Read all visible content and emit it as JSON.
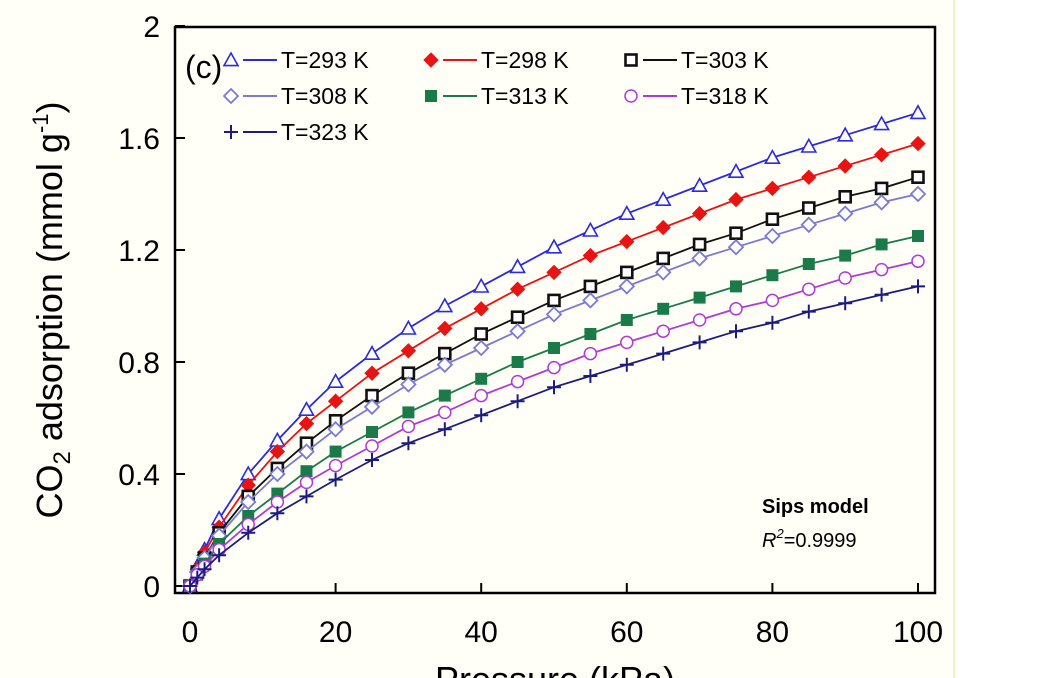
{
  "chart_data": {
    "type": "line",
    "panel_label": "(c)",
    "xlabel": "Pressure (kPa)",
    "ylabel_parts": [
      "CO",
      "2",
      " adsorption (mmol g",
      "-1",
      ")"
    ],
    "xlim": [
      0,
      100
    ],
    "ylim": [
      0,
      2
    ],
    "xticks": [
      0,
      20,
      40,
      60,
      80,
      100
    ],
    "yticks": [
      0,
      0.4,
      0.8,
      1.2,
      1.6,
      2
    ],
    "ytick_labels": [
      "0",
      "0.4",
      "0.8",
      "1.2",
      "1.6",
      "2"
    ],
    "grid": false,
    "legend_position": "top-left",
    "x": [
      0,
      1,
      2,
      4,
      8,
      12,
      16,
      20,
      25,
      30,
      35,
      40,
      45,
      50,
      55,
      60,
      65,
      70,
      75,
      80,
      85,
      90,
      95,
      100
    ],
    "series": [
      {
        "name": "T=293 K",
        "color": "#2a2ae0",
        "marker": "triangle-open",
        "values": [
          0,
          0.07,
          0.13,
          0.24,
          0.4,
          0.52,
          0.63,
          0.73,
          0.83,
          0.92,
          1.0,
          1.07,
          1.14,
          1.21,
          1.27,
          1.33,
          1.38,
          1.43,
          1.48,
          1.53,
          1.57,
          1.61,
          1.65,
          1.69
        ]
      },
      {
        "name": "T=298 K",
        "color": "#e81414",
        "marker": "diamond-filled",
        "values": [
          0,
          0.06,
          0.12,
          0.21,
          0.36,
          0.48,
          0.58,
          0.66,
          0.76,
          0.84,
          0.92,
          0.99,
          1.06,
          1.12,
          1.18,
          1.23,
          1.28,
          1.33,
          1.38,
          1.42,
          1.46,
          1.5,
          1.54,
          1.58
        ]
      },
      {
        "name": "T=303 K",
        "color": "#111111",
        "marker": "square-open",
        "values": [
          0,
          0.05,
          0.1,
          0.19,
          0.32,
          0.42,
          0.51,
          0.59,
          0.68,
          0.76,
          0.83,
          0.9,
          0.96,
          1.02,
          1.07,
          1.12,
          1.17,
          1.22,
          1.26,
          1.31,
          1.35,
          1.39,
          1.42,
          1.46
        ]
      },
      {
        "name": "T=308 K",
        "color": "#7a7ad6",
        "marker": "diamond-open",
        "values": [
          0,
          0.05,
          0.1,
          0.18,
          0.3,
          0.4,
          0.48,
          0.56,
          0.64,
          0.72,
          0.79,
          0.85,
          0.91,
          0.97,
          1.02,
          1.07,
          1.12,
          1.17,
          1.21,
          1.25,
          1.29,
          1.33,
          1.37,
          1.4
        ]
      },
      {
        "name": "T=313 K",
        "color": "#1a7a4a",
        "marker": "square-filled",
        "values": [
          0,
          0.04,
          0.08,
          0.15,
          0.25,
          0.33,
          0.41,
          0.48,
          0.55,
          0.62,
          0.68,
          0.74,
          0.8,
          0.85,
          0.9,
          0.95,
          0.99,
          1.03,
          1.07,
          1.11,
          1.15,
          1.18,
          1.22,
          1.25
        ]
      },
      {
        "name": "T=318 K",
        "color": "#b03ad6",
        "marker": "circle-open",
        "values": [
          0,
          0.04,
          0.07,
          0.13,
          0.22,
          0.3,
          0.37,
          0.43,
          0.5,
          0.57,
          0.62,
          0.68,
          0.73,
          0.78,
          0.83,
          0.87,
          0.91,
          0.95,
          0.99,
          1.02,
          1.06,
          1.1,
          1.13,
          1.16
        ]
      },
      {
        "name": "T=323 K",
        "color": "#1c1c80",
        "marker": "plus",
        "values": [
          0,
          0.03,
          0.06,
          0.11,
          0.19,
          0.26,
          0.32,
          0.38,
          0.45,
          0.51,
          0.56,
          0.61,
          0.66,
          0.71,
          0.75,
          0.79,
          0.83,
          0.87,
          0.91,
          0.94,
          0.98,
          1.01,
          1.04,
          1.07
        ]
      }
    ],
    "annotation": {
      "model": "Sips model",
      "r2_symbol": "R",
      "r2_sup": "2",
      "r2_value": "=0.9999"
    }
  }
}
